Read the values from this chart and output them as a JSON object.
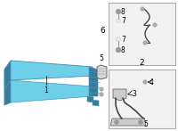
{
  "bg_color": "#ffffff",
  "main_cooler_color": "#6dd0e8",
  "main_cooler_edge": "#4a9ab8",
  "main_cooler_dark": "#3a7a9a",
  "box_color": "#f2f2f2",
  "box_border": "#aaaaaa",
  "part_color": "#cccccc",
  "part_edge": "#555555",
  "label1": "1",
  "label2": "2",
  "label3": "3",
  "label4": "4",
  "label5": "5",
  "label6": "6",
  "label7": "7",
  "label8": "8",
  "font_size": 5.5
}
